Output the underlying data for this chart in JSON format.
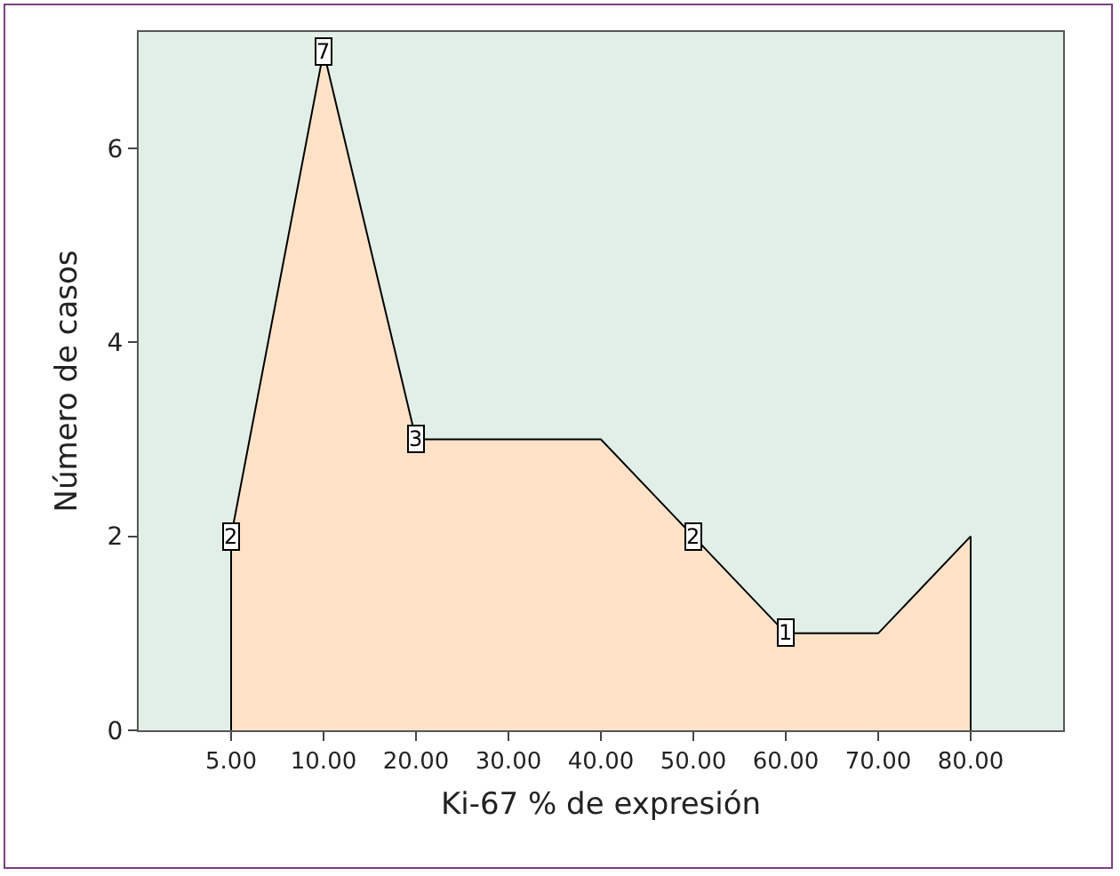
{
  "chart_data": {
    "type": "area",
    "xlabel": "Ki-67 % de expresión",
    "ylabel": "Número de casos",
    "categories": [
      "5.00",
      "10.00",
      "20.00",
      "30.00",
      "40.00",
      "50.00",
      "60.00",
      "70.00",
      "80.00"
    ],
    "series": [
      {
        "color": "#fde2c8",
        "values": [
          2,
          7,
          3,
          3,
          3,
          2,
          1,
          1,
          2
        ],
        "value_labels": [
          "2",
          "7",
          "3",
          null,
          null,
          "2",
          "1",
          null,
          null
        ]
      }
    ],
    "ylim": [
      0,
      7.2
    ],
    "yticks": [
      0,
      2,
      4,
      6
    ]
  }
}
